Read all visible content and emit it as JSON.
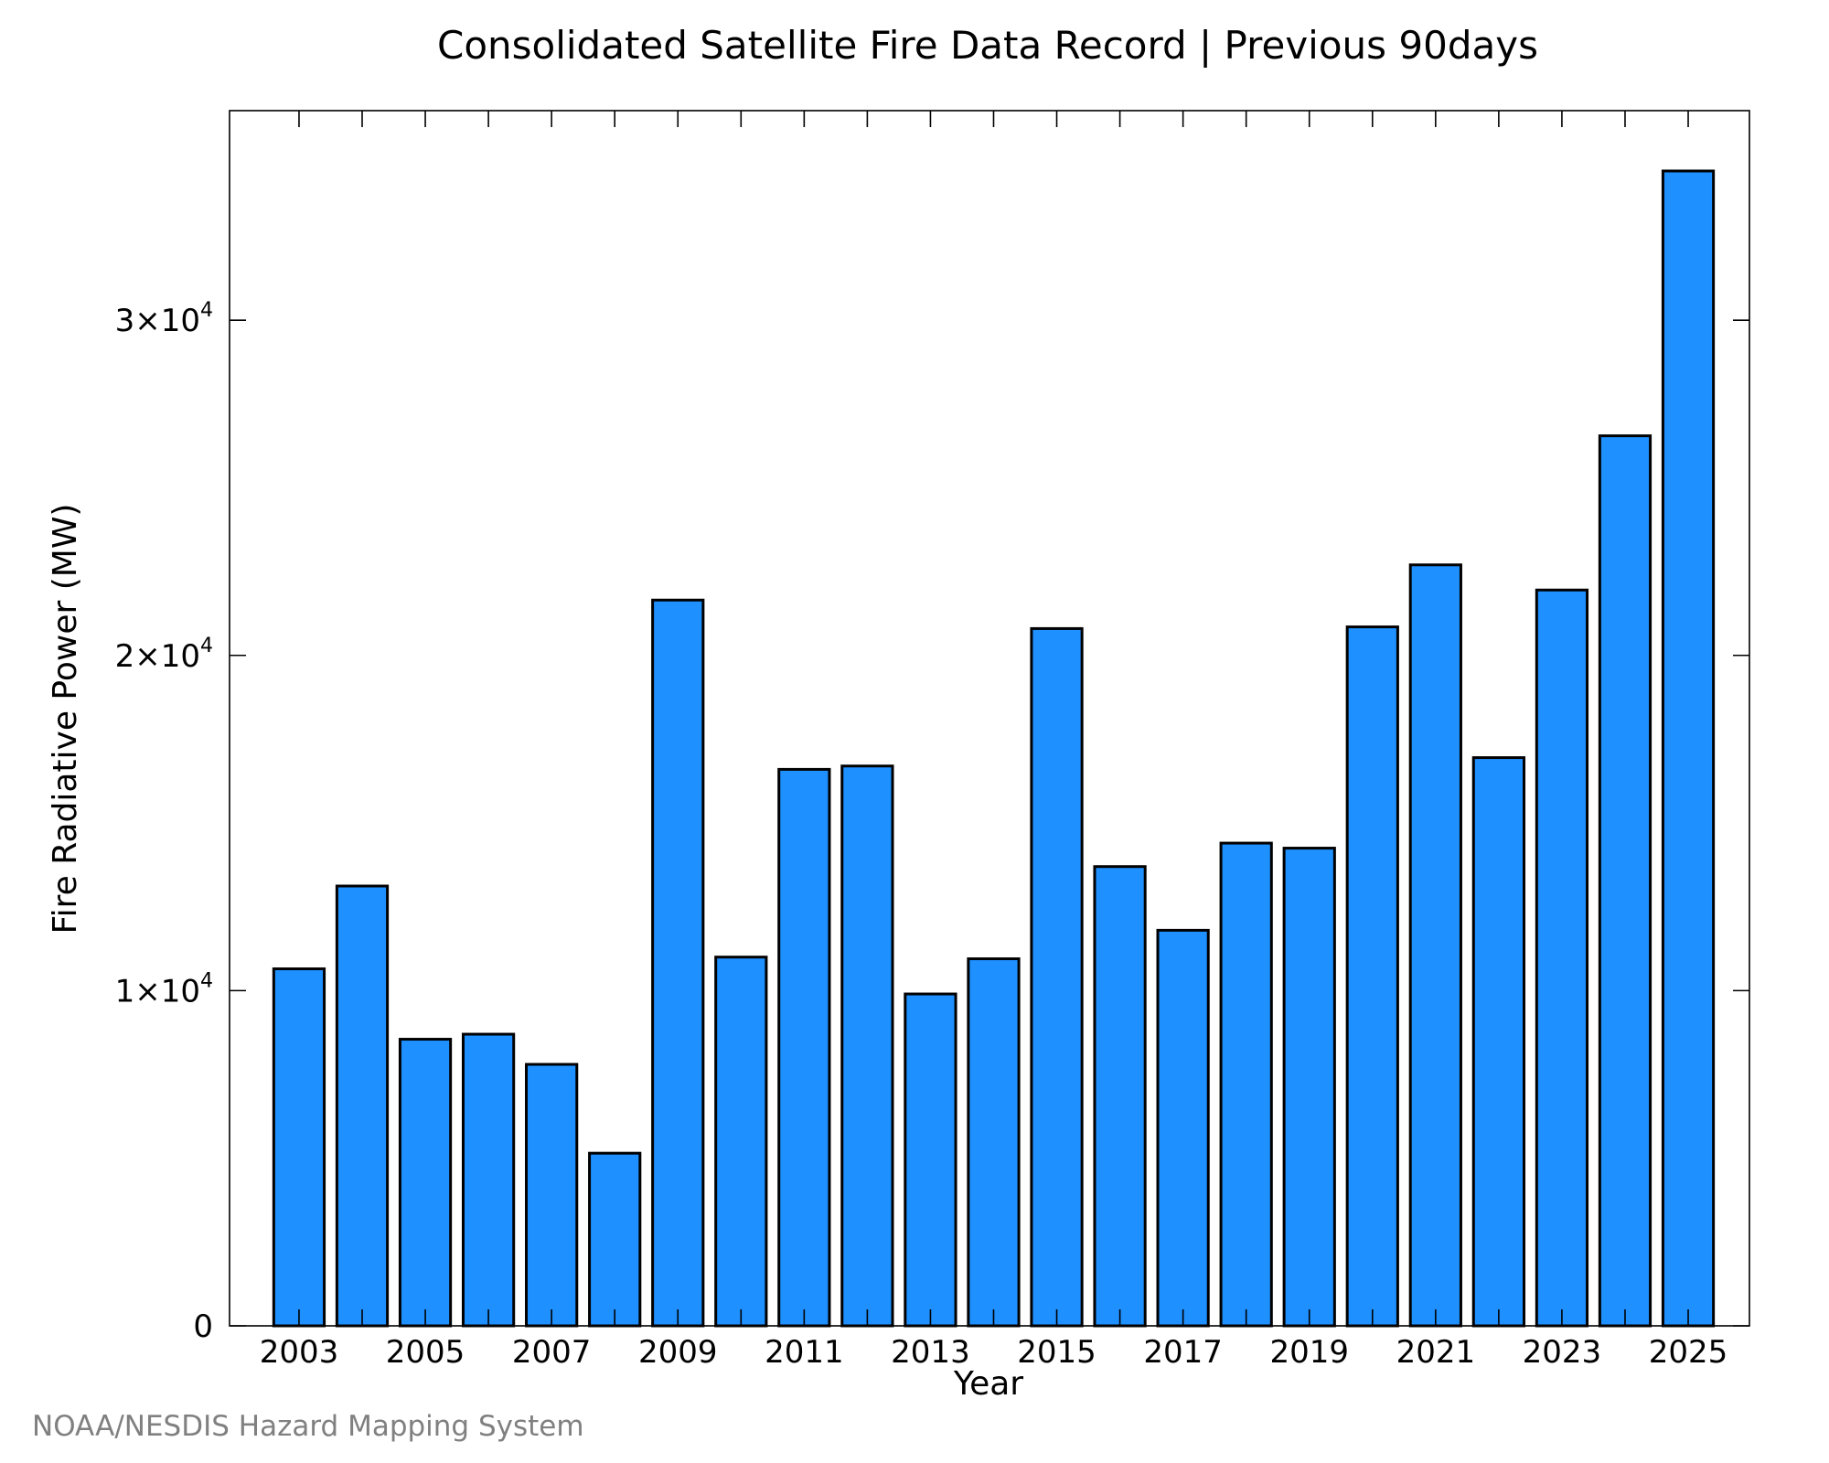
{
  "chart_data": {
    "type": "bar",
    "title": "Consolidated Satellite Fire Data Record | Previous 90days",
    "xlabel": "Year",
    "ylabel": "Fire Radiative Power (MW)",
    "credit": "NOAA/NESDIS Hazard Mapping System",
    "bar_color": "#1e90ff",
    "categories": [
      "2003",
      "2004",
      "2005",
      "2006",
      "2007",
      "2008",
      "2009",
      "2010",
      "2011",
      "2012",
      "2013",
      "2014",
      "2015",
      "2016",
      "2017",
      "2018",
      "2019",
      "2020",
      "2021",
      "2022",
      "2023",
      "2024",
      "2025"
    ],
    "values": [
      10650,
      13120,
      8550,
      8700,
      7800,
      5150,
      21650,
      11000,
      16600,
      16700,
      9900,
      10950,
      20800,
      13700,
      11800,
      14400,
      14250,
      20850,
      22700,
      16950,
      21950,
      26550,
      34450
    ],
    "xtick_labels": [
      "2003",
      "2005",
      "2007",
      "2009",
      "2011",
      "2013",
      "2015",
      "2017",
      "2019",
      "2021",
      "2023",
      "2025"
    ],
    "yticks": [
      {
        "value": 0,
        "mantissa": "0",
        "exponent": ""
      },
      {
        "value": 10000,
        "mantissa": "1×10",
        "exponent": "4"
      },
      {
        "value": 20000,
        "mantissa": "2×10",
        "exponent": "4"
      },
      {
        "value": 30000,
        "mantissa": "3×10",
        "exponent": "4"
      }
    ],
    "ylim": [
      0,
      36250
    ],
    "xlim": [
      2001.9,
      2025.97
    ],
    "grid": false,
    "legend": "none"
  }
}
